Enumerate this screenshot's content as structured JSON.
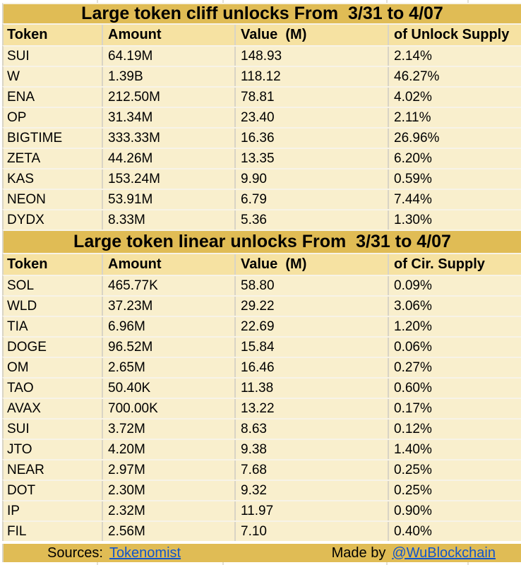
{
  "colors": {
    "gold": "#e0bc55",
    "header_bg": "#f6e2a2",
    "row_bg": "#f9efcd",
    "link_blue": "#1155cc"
  },
  "tables": {
    "cliff": {
      "title": "Large token cliff unlocks From  3/31 to 4/07",
      "headers": [
        "Token",
        "Amount",
        "Value  (M)",
        "of Unlock Supply"
      ],
      "rows": [
        [
          "SUI",
          "64.19M",
          "148.93",
          "2.14%"
        ],
        [
          "W",
          "1.39B",
          "118.12",
          "46.27%"
        ],
        [
          "ENA",
          "212.50M",
          "78.81",
          "4.02%"
        ],
        [
          "OP",
          "31.34M",
          "23.40",
          "2.11%"
        ],
        [
          "BIGTIME",
          "333.33M",
          "16.36",
          "26.96%"
        ],
        [
          "ZETA",
          "44.26M",
          "13.35",
          "6.20%"
        ],
        [
          "KAS",
          "153.24M",
          "9.90",
          "0.59%"
        ],
        [
          "NEON",
          "53.91M",
          "6.79",
          "7.44%"
        ],
        [
          "DYDX",
          "8.33M",
          "5.36",
          "1.30%"
        ]
      ]
    },
    "linear": {
      "title": "Large token linear unlocks From  3/31 to 4/07",
      "headers": [
        "Token",
        "Amount",
        "Value  (M)",
        "of Cir. Supply"
      ],
      "rows": [
        [
          "SOL",
          "465.77K",
          "58.80",
          "0.09%"
        ],
        [
          "WLD",
          "37.23M",
          "29.22",
          "3.06%"
        ],
        [
          "TIA",
          "6.96M",
          "22.69",
          "1.20%"
        ],
        [
          "DOGE",
          "96.52M",
          "15.84",
          "0.06%"
        ],
        [
          "OM",
          "2.65M",
          "16.46",
          "0.27%"
        ],
        [
          "TAO",
          "50.40K",
          "11.38",
          "0.60%"
        ],
        [
          "AVAX",
          "700.00K",
          "13.22",
          "0.17%"
        ],
        [
          "SUI",
          "3.72M",
          "8.63",
          "0.12%"
        ],
        [
          "JTO",
          "4.20M",
          "9.38",
          "1.40%"
        ],
        [
          "NEAR",
          "2.97M",
          "7.68",
          "0.25%"
        ],
        [
          "DOT",
          "2.30M",
          "9.32",
          "0.25%"
        ],
        [
          "IP",
          "2.32M",
          "11.97",
          "0.90%"
        ],
        [
          "FIL",
          "2.56M",
          "7.10",
          "0.40%"
        ]
      ]
    }
  },
  "footer": {
    "sources_label": "Sources:",
    "sources_link": "Tokenomist",
    "made_by_label": "Made by",
    "made_by_link": "@WuBlockchain"
  }
}
